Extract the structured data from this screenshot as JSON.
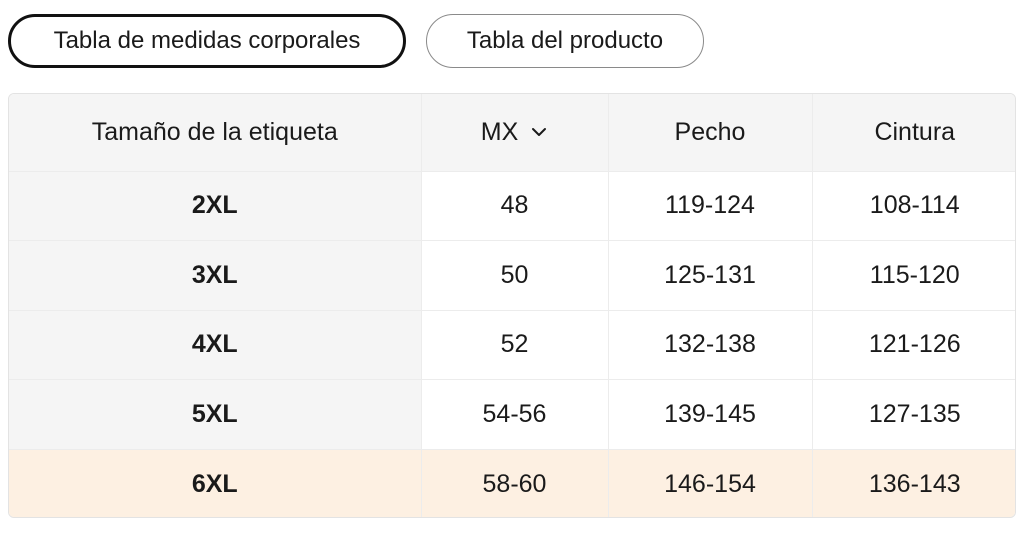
{
  "tabs": [
    {
      "label": "Tabla de medidas corporales",
      "active": true
    },
    {
      "label": "Tabla del producto",
      "active": false
    }
  ],
  "table": {
    "headers": {
      "label": "Tamaño de la etiqueta",
      "region": "MX",
      "chest": "Pecho",
      "waist": "Cintura"
    },
    "rows": [
      {
        "label": "2XL",
        "region": "48",
        "chest": "119-124",
        "waist": "108-114"
      },
      {
        "label": "3XL",
        "region": "50",
        "chest": "125-131",
        "waist": "115-120"
      },
      {
        "label": "4XL",
        "region": "52",
        "chest": "132-138",
        "waist": "121-126"
      },
      {
        "label": "5XL",
        "region": "54-56",
        "chest": "139-145",
        "waist": "127-135"
      },
      {
        "label": "6XL",
        "region": "58-60",
        "chest": "146-154",
        "waist": "136-143"
      }
    ],
    "highlight_row": 4
  },
  "icons": {
    "region_dropdown": "chevron-down-icon"
  },
  "colors": {
    "header_bg": "#f5f5f5",
    "highlight_bg": "#fdf0e2",
    "active_border": "#111111"
  }
}
